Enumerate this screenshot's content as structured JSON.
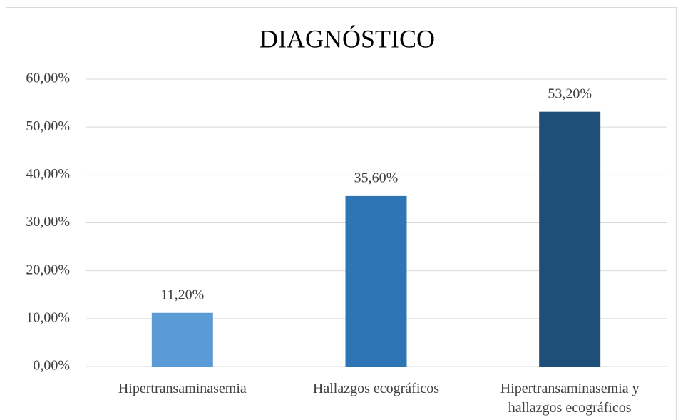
{
  "chart_data": {
    "type": "bar",
    "title": "DIAGNÓSTICO",
    "categories": [
      "Hipertransaminasemia",
      "Hallazgos ecográficos",
      "Hipertransaminasemia y hallazgos ecográficos"
    ],
    "values": [
      11.2,
      35.6,
      53.2
    ],
    "value_labels": [
      "11,20%",
      "35,60%",
      "53,20%"
    ],
    "colors": [
      "#5b9bd5",
      "#2e75b6",
      "#1f4e79"
    ],
    "ylim": [
      0,
      60
    ],
    "yticks": [
      {
        "value": 0,
        "label": "0,00%"
      },
      {
        "value": 10,
        "label": "10,00%"
      },
      {
        "value": 20,
        "label": "20,00%"
      },
      {
        "value": 30,
        "label": "30,00%"
      },
      {
        "value": 40,
        "label": "40,00%"
      },
      {
        "value": 50,
        "label": "50,00%"
      },
      {
        "value": 60,
        "label": "60,00%"
      }
    ],
    "grid": true
  }
}
